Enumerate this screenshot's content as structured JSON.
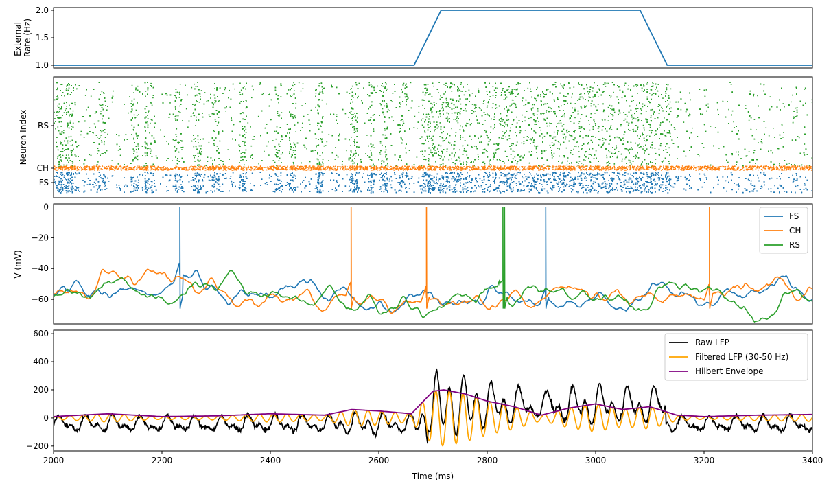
{
  "chart_data": [
    {
      "type": "line",
      "panel": "external-rate",
      "ylabel": "External Rate (Hz)",
      "ylabel_lines": [
        "External",
        "Rate (Hz)"
      ],
      "xlim": [
        2000,
        3400
      ],
      "ylim": [
        0.95,
        2.05
      ],
      "yticks": [
        1.0,
        1.5,
        2.0
      ],
      "yticklabels": [
        "1.0",
        "1.5",
        "2.0"
      ],
      "series": [
        {
          "color": "#1f77b4",
          "x": [
            2000,
            2665,
            2715,
            3082,
            3132,
            3400
          ],
          "y": [
            1.0,
            1.0,
            2.0,
            2.0,
            1.0,
            1.0
          ]
        }
      ]
    },
    {
      "type": "scatter",
      "panel": "raster",
      "ylabel": "Neuron Index",
      "xlim": [
        2000,
        3400
      ],
      "yticklabels": [
        "FS",
        "CH",
        "RS"
      ],
      "series": [
        {
          "name": "FS",
          "color": "#1f77b4"
        },
        {
          "name": "CH",
          "color": "#ff7f0e"
        },
        {
          "name": "RS",
          "color": "#2ca02c"
        }
      ]
    },
    {
      "type": "line",
      "panel": "membrane-potential",
      "ylabel": "V (mV)",
      "xlim": [
        2000,
        3400
      ],
      "ylim": [
        -76,
        2
      ],
      "yticks": [
        0,
        -20,
        -40,
        -60
      ],
      "yticklabels": [
        "0",
        "−20",
        "−40",
        "−60"
      ],
      "legend_position": "top-right",
      "series": [
        {
          "name": "FS",
          "color": "#1f77b4",
          "baseline": -57,
          "spikes": [
            2233,
            2908
          ]
        },
        {
          "name": "CH",
          "color": "#ff7f0e",
          "baseline": -57,
          "spikes": [
            2549,
            2688,
            3210
          ]
        },
        {
          "name": "RS",
          "color": "#2ca02c",
          "baseline": -58,
          "spikes": [
            2829,
            2832
          ]
        }
      ]
    },
    {
      "type": "line",
      "panel": "lfp",
      "xlabel": "Time (ms)",
      "xlim": [
        2000,
        3400
      ],
      "ylim": [
        -235,
        625
      ],
      "yticks": [
        -200,
        0,
        200,
        400,
        600
      ],
      "yticklabels": [
        "−200",
        "0",
        "200",
        "400",
        "600"
      ],
      "xticks": [
        2000,
        2200,
        2400,
        2600,
        2800,
        3000,
        3200,
        3400
      ],
      "xticklabels": [
        "2000",
        "2200",
        "2400",
        "2600",
        "2800",
        "3000",
        "3200",
        "3400"
      ],
      "legend_position": "top-right",
      "series": [
        {
          "name": "Raw LFP",
          "color": "#000000"
        },
        {
          "name": "Filtered LFP (30-50 Hz)",
          "color": "#ffa500"
        },
        {
          "name": "Hilbert Envelope",
          "color": "#800080",
          "x": [
            2000,
            2100,
            2200,
            2300,
            2400,
            2500,
            2550,
            2600,
            2660,
            2680,
            2700,
            2720,
            2760,
            2800,
            2850,
            2900,
            2950,
            3000,
            3050,
            3100,
            3150,
            3200,
            3300,
            3400
          ],
          "y": [
            10,
            30,
            10,
            15,
            30,
            20,
            60,
            50,
            30,
            110,
            190,
            200,
            170,
            120,
            80,
            20,
            70,
            100,
            60,
            80,
            20,
            10,
            20,
            25
          ]
        }
      ]
    }
  ]
}
